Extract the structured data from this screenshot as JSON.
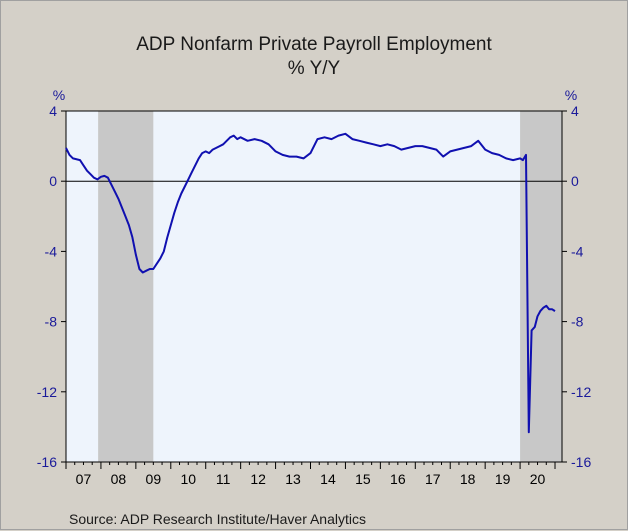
{
  "chart_data": {
    "type": "line",
    "title": "ADP Nonfarm Private Payroll Employment",
    "subtitle": "% Y/Y",
    "ylabel_left": "%",
    "ylabel_right": "%",
    "ylim": [
      -16,
      4
    ],
    "yticks": [
      4,
      0,
      -4,
      -8,
      -12,
      -16
    ],
    "ytick_labels": [
      "4",
      "0",
      "-4",
      "-8",
      "-12",
      "-16"
    ],
    "xlim": [
      2007.0,
      2021.2
    ],
    "xtick_labels": [
      "07",
      "08",
      "09",
      "10",
      "11",
      "12",
      "13",
      "14",
      "15",
      "16",
      "17",
      "18",
      "19",
      "20"
    ],
    "xtick_years": [
      2007,
      2008,
      2009,
      2010,
      2011,
      2012,
      2013,
      2014,
      2015,
      2016,
      2017,
      2018,
      2019,
      2020
    ],
    "recessions": [
      [
        2007.92,
        2009.5
      ],
      [
        2020.0,
        2021.2
      ]
    ],
    "zero_line": true,
    "source": "Source:  ADP Research Institute/Haver Analytics",
    "colors": {
      "line": "#1010b0",
      "plot_bg": "#eef4fc",
      "recession": "#c8c8c8",
      "outer_bg": "#d4d0c8",
      "axis_text": "#1a1a9a"
    },
    "series": [
      {
        "x": [
          2007.0,
          2007.1,
          2007.2,
          2007.4,
          2007.5,
          2007.6,
          2007.7,
          2007.8,
          2007.9,
          2008.0,
          2008.1,
          2008.2,
          2008.3,
          2008.4,
          2008.5,
          2008.6,
          2008.7,
          2008.8,
          2008.9,
          2009.0,
          2009.1,
          2009.2,
          2009.3,
          2009.4,
          2009.5,
          2009.6,
          2009.7,
          2009.8,
          2009.9,
          2010.0,
          2010.1,
          2010.2,
          2010.3,
          2010.4,
          2010.5,
          2010.6,
          2010.7,
          2010.8,
          2010.9,
          2011.0,
          2011.1,
          2011.2,
          2011.3,
          2011.4,
          2011.5,
          2011.6,
          2011.7,
          2011.8,
          2011.9,
          2012.0,
          2012.2,
          2012.4,
          2012.6,
          2012.8,
          2013.0,
          2013.2,
          2013.4,
          2013.6,
          2013.8,
          2014.0,
          2014.2,
          2014.4,
          2014.6,
          2014.8,
          2015.0,
          2015.2,
          2015.4,
          2015.6,
          2015.8,
          2016.0,
          2016.2,
          2016.4,
          2016.6,
          2016.8,
          2017.0,
          2017.2,
          2017.4,
          2017.6,
          2017.8,
          2018.0,
          2018.2,
          2018.4,
          2018.6,
          2018.8,
          2019.0,
          2019.2,
          2019.4,
          2019.6,
          2019.8,
          2020.0,
          2020.08,
          2020.17,
          2020.25,
          2020.33,
          2020.42,
          2020.5,
          2020.58,
          2020.67,
          2020.75,
          2020.83,
          2020.92,
          2021.0
        ],
        "values": [
          1.9,
          1.5,
          1.3,
          1.2,
          0.9,
          0.6,
          0.4,
          0.2,
          0.1,
          0.25,
          0.3,
          0.2,
          -0.2,
          -0.6,
          -1.0,
          -1.5,
          -2.0,
          -2.5,
          -3.2,
          -4.2,
          -5.0,
          -5.2,
          -5.1,
          -5.0,
          -5.0,
          -4.7,
          -4.4,
          -4.0,
          -3.2,
          -2.5,
          -1.8,
          -1.2,
          -0.7,
          -0.3,
          0.1,
          0.5,
          0.9,
          1.3,
          1.6,
          1.7,
          1.6,
          1.8,
          1.9,
          2.0,
          2.1,
          2.3,
          2.5,
          2.6,
          2.4,
          2.5,
          2.3,
          2.4,
          2.3,
          2.1,
          1.7,
          1.5,
          1.4,
          1.4,
          1.3,
          1.6,
          2.4,
          2.5,
          2.4,
          2.6,
          2.7,
          2.4,
          2.3,
          2.2,
          2.1,
          2.0,
          2.1,
          2.0,
          1.8,
          1.9,
          2.0,
          2.0,
          1.9,
          1.8,
          1.4,
          1.7,
          1.8,
          1.9,
          2.0,
          2.3,
          1.8,
          1.6,
          1.5,
          1.3,
          1.2,
          1.3,
          1.2,
          1.5,
          -14.3,
          -8.5,
          -8.3,
          -7.7,
          -7.4,
          -7.2,
          -7.1,
          -7.3,
          -7.3,
          -7.4
        ]
      }
    ]
  }
}
